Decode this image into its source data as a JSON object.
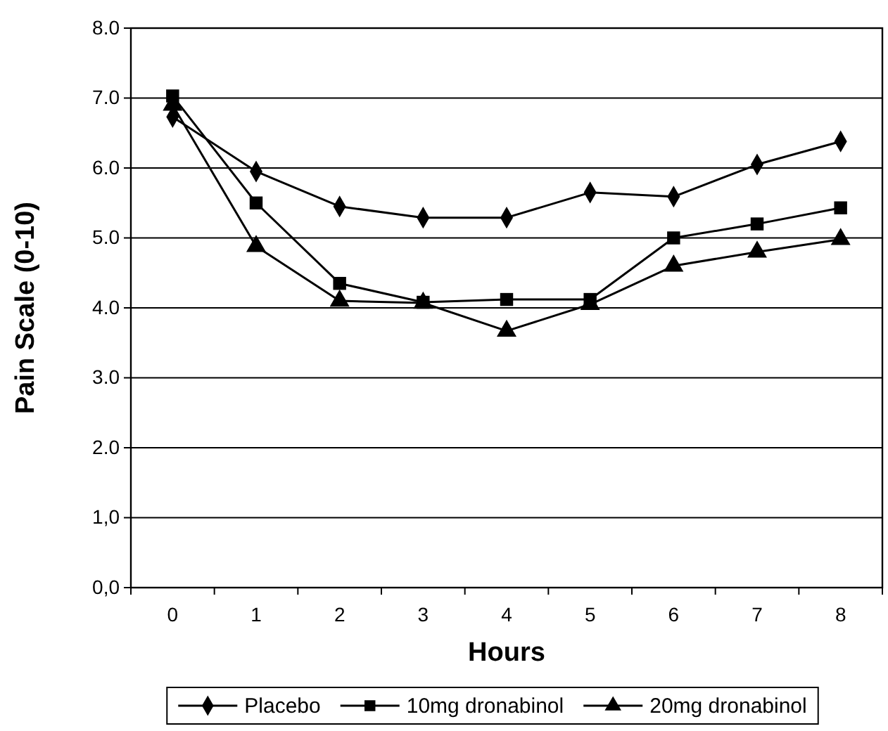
{
  "chart_data": {
    "type": "line",
    "xlabel": "Hours",
    "ylabel": "Pain Scale (0-10)",
    "categories": [
      "0",
      "1",
      "2",
      "3",
      "4",
      "5",
      "6",
      "7",
      "8"
    ],
    "ylim": [
      0,
      8
    ],
    "yticks": [
      {
        "value": 0,
        "label": "0,0"
      },
      {
        "value": 1,
        "label": "1,0"
      },
      "2.0",
      "3.0",
      "4.0",
      "5.0",
      "6.0",
      "7.0",
      "8.0"
    ],
    "grid": "y",
    "legend": "bottom",
    "line_style": "solid",
    "series": [
      {
        "name": "Placebo",
        "color": "#000000",
        "marker": "diamond",
        "values": [
          6.73,
          5.95,
          5.45,
          5.29,
          5.29,
          5.65,
          5.59,
          6.05,
          6.38
        ]
      },
      {
        "name": "10mg dronabinol",
        "color": "#000000",
        "marker": "square",
        "values": [
          7.03,
          5.5,
          4.35,
          4.08,
          4.12,
          4.12,
          5.0,
          5.2,
          5.43
        ]
      },
      {
        "name": "20mg dronabinol",
        "color": "#000000",
        "marker": "triangle",
        "values": [
          6.9,
          4.88,
          4.1,
          4.07,
          3.67,
          4.05,
          4.6,
          4.8,
          4.98
        ]
      }
    ]
  }
}
